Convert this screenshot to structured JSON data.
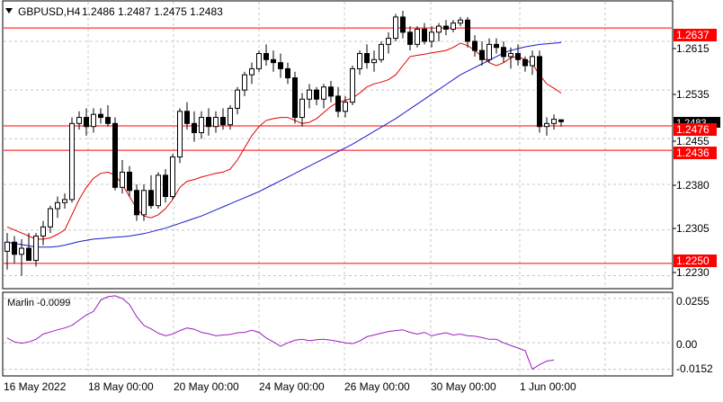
{
  "header": {
    "symbol_label": "GBPUSD,H4",
    "ohlc_text": "1.2486 1.2487 1.2475 1.2483",
    "dropdown_icon": "triangle-down-icon"
  },
  "main_axis": {
    "ticks": [
      "1.2615",
      "1.2535",
      "1.2455",
      "1.2380",
      "1.2305",
      "1.2230"
    ],
    "hline_labels": [
      "1.2637",
      "1.2476",
      "1.2436",
      "1.2250"
    ],
    "partial_price_label": "1.2483"
  },
  "indicator": {
    "label": "Marlin -0.0099",
    "ticks": [
      "0.0255",
      "0.00",
      "-0.0152"
    ]
  },
  "time_axis": {
    "labels": [
      "16 May 2022",
      "18 May 00:00",
      "20 May 00:00",
      "24 May 00:00",
      "26 May 00:00",
      "30 May 00:00",
      "1 Jun 00:00"
    ]
  },
  "colors": {
    "hline": "#ff0000",
    "hline_label_bg": "#ff0000",
    "ma_fast": "#e00000",
    "ma_slow": "#1a1acc",
    "indicator_line": "#9b1fbf",
    "bull_fill": "#ffffff",
    "bear_fill": "#000000",
    "grid": "#c8c8c8"
  },
  "chart_data": {
    "type": "candlestick",
    "symbol": "GBPUSD",
    "timeframe": "H4",
    "y_range": [
      1.221,
      1.268
    ],
    "horizontal_levels": [
      1.2637,
      1.2476,
      1.2436,
      1.225
    ],
    "candles": [
      [
        1.227,
        1.23,
        1.224,
        1.2285
      ],
      [
        1.2285,
        1.2295,
        1.225,
        1.2265
      ],
      [
        1.2265,
        1.229,
        1.223,
        1.2275
      ],
      [
        1.2275,
        1.23,
        1.2255,
        1.2255
      ],
      [
        1.2255,
        1.23,
        1.2245,
        1.2295
      ],
      [
        1.2295,
        1.232,
        1.228,
        1.231
      ],
      [
        1.231,
        1.2345,
        1.23,
        1.234
      ],
      [
        1.234,
        1.236,
        1.2325,
        1.235
      ],
      [
        1.235,
        1.2365,
        1.234,
        1.2355
      ],
      [
        1.2355,
        1.249,
        1.235,
        1.248
      ],
      [
        1.248,
        1.25,
        1.247,
        1.249
      ],
      [
        1.249,
        1.2505,
        1.246,
        1.2475
      ],
      [
        1.2475,
        1.2505,
        1.2465,
        1.2495
      ],
      [
        1.2495,
        1.2505,
        1.248,
        1.249
      ],
      [
        1.249,
        1.251,
        1.2475,
        1.248
      ],
      [
        1.248,
        1.249,
        1.237,
        1.2375
      ],
      [
        1.2375,
        1.242,
        1.2365,
        1.24
      ],
      [
        1.24,
        1.241,
        1.236,
        1.237
      ],
      [
        1.237,
        1.238,
        1.232,
        1.233
      ],
      [
        1.233,
        1.238,
        1.232,
        1.237
      ],
      [
        1.237,
        1.2395,
        1.234,
        1.2345
      ],
      [
        1.2345,
        1.24,
        1.234,
        1.2395
      ],
      [
        1.2395,
        1.2405,
        1.235,
        1.236
      ],
      [
        1.236,
        1.243,
        1.2355,
        1.2425
      ],
      [
        1.2425,
        1.2505,
        1.2415,
        1.25
      ],
      [
        1.25,
        1.2515,
        1.247,
        1.248
      ],
      [
        1.248,
        1.25,
        1.245,
        1.2465
      ],
      [
        1.2465,
        1.25,
        1.2455,
        1.249
      ],
      [
        1.249,
        1.2505,
        1.246,
        1.2475
      ],
      [
        1.2475,
        1.25,
        1.2465,
        1.249
      ],
      [
        1.249,
        1.2505,
        1.247,
        1.2478
      ],
      [
        1.2478,
        1.251,
        1.247,
        1.2505
      ],
      [
        1.2505,
        1.254,
        1.2495,
        1.2535
      ],
      [
        1.2535,
        1.2565,
        1.2525,
        1.256
      ],
      [
        1.256,
        1.258,
        1.2545,
        1.257
      ],
      [
        1.257,
        1.26,
        1.2565,
        1.2595
      ],
      [
        1.2595,
        1.261,
        1.2575,
        1.2585
      ],
      [
        1.2585,
        1.26,
        1.2565,
        1.258
      ],
      [
        1.258,
        1.2595,
        1.2555,
        1.257
      ],
      [
        1.257,
        1.258,
        1.2545,
        1.2555
      ],
      [
        1.2555,
        1.2565,
        1.248,
        1.249
      ],
      [
        1.249,
        1.253,
        1.2475,
        1.252
      ],
      [
        1.252,
        1.2545,
        1.2505,
        1.2535
      ],
      [
        1.2535,
        1.254,
        1.251,
        1.252
      ],
      [
        1.252,
        1.2545,
        1.2505,
        1.254
      ],
      [
        1.254,
        1.255,
        1.2515,
        1.2525
      ],
      [
        1.2525,
        1.254,
        1.249,
        1.25
      ],
      [
        1.25,
        1.2525,
        1.249,
        1.2515
      ],
      [
        1.2515,
        1.2575,
        1.251,
        1.257
      ],
      [
        1.257,
        1.26,
        1.256,
        1.2595
      ],
      [
        1.2595,
        1.261,
        1.257,
        1.258
      ],
      [
        1.258,
        1.26,
        1.2565,
        1.2585
      ],
      [
        1.2585,
        1.2615,
        1.258,
        1.261
      ],
      [
        1.261,
        1.263,
        1.2595,
        1.262
      ],
      [
        1.262,
        1.266,
        1.2615,
        1.2655
      ],
      [
        1.2655,
        1.2665,
        1.262,
        1.263
      ],
      [
        1.263,
        1.264,
        1.26,
        1.261
      ],
      [
        1.261,
        1.264,
        1.2605,
        1.2635
      ],
      [
        1.2635,
        1.2645,
        1.261,
        1.2615
      ],
      [
        1.2615,
        1.264,
        1.2605,
        1.263
      ],
      [
        1.263,
        1.2645,
        1.2615,
        1.264
      ],
      [
        1.264,
        1.265,
        1.2625,
        1.2635
      ],
      [
        1.2635,
        1.265,
        1.263,
        1.2645
      ],
      [
        1.2645,
        1.2655,
        1.264,
        1.265
      ],
      [
        1.265,
        1.2655,
        1.2605,
        1.2615
      ],
      [
        1.2615,
        1.2625,
        1.259,
        1.26
      ],
      [
        1.26,
        1.2615,
        1.2575,
        1.2585
      ],
      [
        1.2585,
        1.262,
        1.258,
        1.261
      ],
      [
        1.261,
        1.262,
        1.2595,
        1.2605
      ],
      [
        1.2605,
        1.2615,
        1.258,
        1.259
      ],
      [
        1.259,
        1.2605,
        1.257,
        1.2595
      ],
      [
        1.2595,
        1.261,
        1.2575,
        1.2585
      ],
      [
        1.2585,
        1.259,
        1.2565,
        1.2575
      ],
      [
        1.2575,
        1.26,
        1.256,
        1.259
      ],
      [
        1.259,
        1.26,
        1.2465,
        1.2475
      ],
      [
        1.2475,
        1.249,
        1.246,
        1.248
      ],
      [
        1.248,
        1.2495,
        1.247,
        1.2487
      ],
      [
        1.2486,
        1.2487,
        1.2475,
        1.2483
      ]
    ],
    "ma_fast": [
      1.231,
      1.2305,
      1.23,
      1.2295,
      1.229,
      1.229,
      1.2292,
      1.2298,
      1.2305,
      1.233,
      1.2355,
      1.2375,
      1.239,
      1.2398,
      1.24,
      1.2395,
      1.238,
      1.236,
      1.234,
      1.2328,
      1.2325,
      1.233,
      1.234,
      1.2355,
      1.2375,
      1.2385,
      1.2388,
      1.2392,
      1.2395,
      1.2398,
      1.24,
      1.2405,
      1.242,
      1.244,
      1.246,
      1.2475,
      1.2485,
      1.2488,
      1.249,
      1.249,
      1.2485,
      1.248,
      1.2482,
      1.2488,
      1.2498,
      1.2508,
      1.2515,
      1.2518,
      1.2522,
      1.253,
      1.254,
      1.2545,
      1.2548,
      1.2552,
      1.256,
      1.2575,
      1.259,
      1.2592,
      1.2594,
      1.2596,
      1.2598,
      1.26,
      1.2605,
      1.2612,
      1.2608,
      1.26,
      1.259,
      1.258,
      1.2575,
      1.258,
      1.2588,
      1.259,
      1.2585,
      1.2578,
      1.256,
      1.2545,
      1.2538,
      1.253
    ],
    "ma_slow": [
      1.2285,
      1.2283,
      1.2281,
      1.2279,
      1.2277,
      1.2277,
      1.2277,
      1.2278,
      1.228,
      1.2283,
      1.2286,
      1.2288,
      1.229,
      1.2291,
      1.2292,
      1.2293,
      1.2294,
      1.2295,
      1.2297,
      1.2299,
      1.2302,
      1.2305,
      1.2308,
      1.2312,
      1.2316,
      1.232,
      1.2324,
      1.2328,
      1.2333,
      1.2338,
      1.2343,
      1.2348,
      1.2353,
      1.2358,
      1.2363,
      1.2368,
      1.2374,
      1.238,
      1.2386,
      1.2392,
      1.2398,
      1.2404,
      1.241,
      1.2416,
      1.2422,
      1.2428,
      1.2434,
      1.244,
      1.2446,
      1.2453,
      1.246,
      1.2467,
      1.2474,
      1.2481,
      1.2488,
      1.2496,
      1.2504,
      1.2512,
      1.252,
      1.2528,
      1.2536,
      1.2544,
      1.2552,
      1.256,
      1.2566,
      1.2572,
      1.2578,
      1.2584,
      1.259,
      1.2596,
      1.26,
      1.2603,
      1.2606,
      1.2608,
      1.261,
      1.2611,
      1.2612,
      1.2613
    ],
    "indicator": {
      "name": "Marlin",
      "value_label": "-0.0099",
      "y_range": [
        -0.0185,
        0.0285
      ],
      "values": [
        0.0028,
        0.0005,
        -0.0002,
        0.0005,
        0.002,
        0.005,
        0.0062,
        0.0075,
        0.0085,
        0.01,
        0.013,
        0.016,
        0.018,
        0.0245,
        0.0265,
        0.027,
        0.0255,
        0.022,
        0.015,
        0.01,
        0.008,
        0.0055,
        0.004,
        0.005,
        0.007,
        0.0085,
        0.0078,
        0.006,
        0.0052,
        0.004,
        0.0045,
        0.0048,
        0.0058,
        0.006,
        0.0072,
        0.006,
        0.0028,
        0.0005,
        -0.002,
        0.0,
        0.0015,
        0.002,
        0.0012,
        0.0018,
        0.002,
        0.0015,
        0.0008,
        0.0,
        -0.0005,
        0.001,
        0.0035,
        0.0045,
        0.0055,
        0.0065,
        0.007,
        0.0075,
        0.006,
        0.005,
        0.006,
        0.004,
        0.005,
        0.0058,
        0.0045,
        0.005,
        0.004,
        0.0038,
        0.003,
        0.002,
        0.002,
        0.0,
        -0.0015,
        -0.003,
        -0.0045,
        -0.0152,
        -0.0125,
        -0.0105,
        -0.0099
      ]
    }
  }
}
